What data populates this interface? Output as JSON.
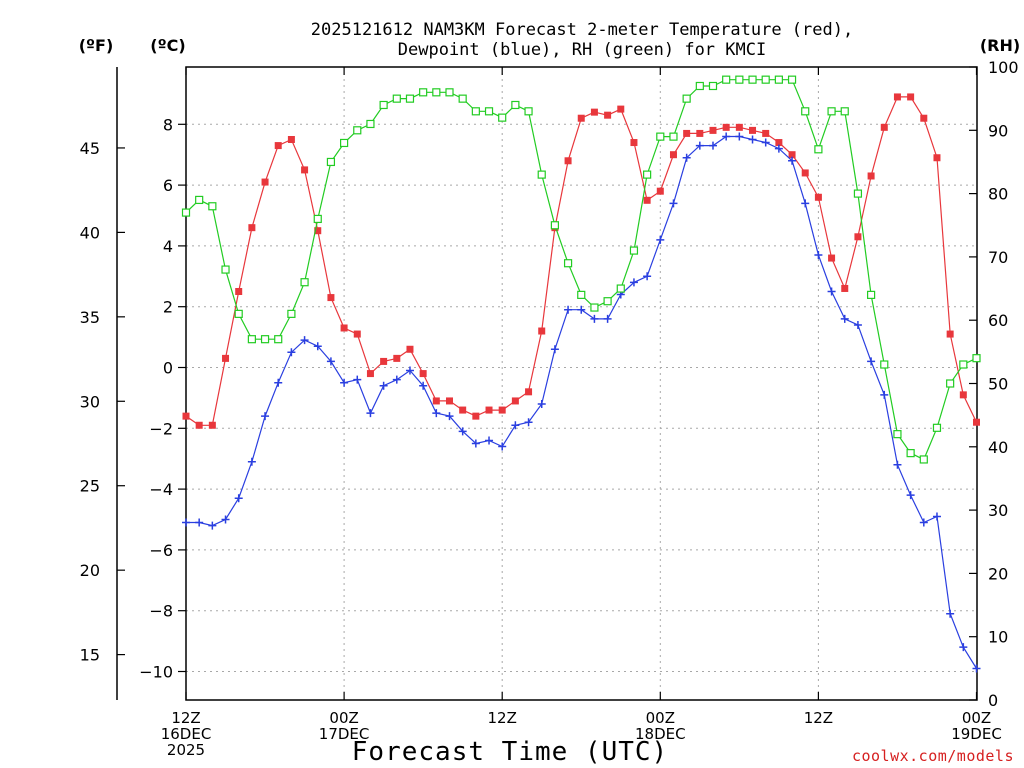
{
  "chart_data": {
    "type": "line",
    "title": "2025121612 NAM3KM Forecast 2-meter Temperature (red),",
    "title_line2": "Dewpoint (blue), RH (green) for KMCI",
    "xlabel": "Forecast Time (UTC)",
    "credit": "coolwx.com/models",
    "units": {
      "fahrenheit": "(ºF)",
      "celsius": "(ºC)",
      "rh": "(RH)"
    },
    "x_range_hours": [
      0,
      36
    ],
    "x_ticks": [
      {
        "hour": 0,
        "lines": [
          "12Z",
          "16DEC",
          "2025"
        ]
      },
      {
        "hour": 6,
        "lines": [
          "00Z",
          "17DEC"
        ]
      },
      {
        "hour": 12,
        "lines": [
          "12Z"
        ]
      },
      {
        "hour": 18,
        "lines": [
          "00Z",
          "18DEC"
        ]
      },
      {
        "hour": 24,
        "lines": [
          "12Z"
        ]
      },
      {
        "hour": 30,
        "lines": [
          "00Z",
          "19DEC"
        ]
      }
    ],
    "celsius_axis": {
      "ylim": [
        -11,
        9.5
      ],
      "ticks": [
        -10,
        -8,
        -6,
        -4,
        -2,
        0,
        2,
        4,
        6,
        8
      ]
    },
    "fahrenheit_axis": {
      "ticks": [
        15,
        20,
        25,
        30,
        35,
        40,
        45
      ]
    },
    "rh_axis": {
      "ylim": [
        0,
        100
      ],
      "ticks": [
        0,
        10,
        20,
        30,
        40,
        50,
        60,
        70,
        80,
        90,
        100
      ]
    },
    "hours": [
      0,
      0.5,
      1,
      1.5,
      2,
      2.5,
      3,
      3.5,
      4,
      4.5,
      5,
      5.5,
      6,
      6.5,
      7,
      7.5,
      8,
      8.5,
      9,
      9.5,
      10,
      10.5,
      11,
      11.5,
      12,
      12.5,
      13,
      13.5,
      14,
      14.5,
      15,
      15.5,
      16,
      16.5,
      17,
      17.5,
      18,
      18.5,
      19,
      19.5,
      20,
      20.5,
      21,
      21.5,
      22,
      22.5,
      23,
      23.5,
      24,
      24.5,
      25,
      25.5,
      26,
      26.5,
      27,
      27.5,
      28,
      28.5,
      29,
      29.5,
      30
    ],
    "series": [
      {
        "name": "Temperature",
        "color": "#e8373c",
        "marker": "filled-square",
        "axis": "celsius",
        "values": [
          -1.6,
          -1.9,
          -1.9,
          0.3,
          2.5,
          4.6,
          6.1,
          7.3,
          7.5,
          6.5,
          4.5,
          2.3,
          1.3,
          1.1,
          -0.2,
          0.2,
          0.3,
          0.6,
          -0.2,
          -1.1,
          -1.1,
          -1.4,
          -1.6,
          -1.4,
          -1.4,
          -1.1,
          -0.8,
          1.2,
          4.6,
          6.8,
          8.2,
          8.4,
          8.3,
          8.5,
          7.4,
          5.5,
          5.8,
          7.0,
          7.7,
          7.7,
          7.8,
          7.9,
          7.9,
          7.8,
          7.7,
          7.4,
          7.0,
          6.4,
          5.6,
          3.6,
          2.6,
          4.3,
          6.3,
          7.9,
          8.9,
          8.9,
          8.2,
          6.9,
          1.1,
          -0.9,
          -1.8
        ]
      },
      {
        "name": "Dewpoint",
        "color": "#2a3fe0",
        "marker": "plus",
        "axis": "celsius",
        "values": [
          -5.1,
          -5.1,
          -5.2,
          -5.0,
          -4.3,
          -3.1,
          -1.6,
          -0.5,
          0.5,
          0.9,
          0.7,
          0.2,
          -0.5,
          -0.4,
          -1.5,
          -0.6,
          -0.4,
          -0.1,
          -0.6,
          -1.5,
          -1.6,
          -2.1,
          -2.5,
          -2.4,
          -2.6,
          -1.9,
          -1.8,
          -1.2,
          0.6,
          1.9,
          1.9,
          1.6,
          1.6,
          2.4,
          2.8,
          3.0,
          4.2,
          5.4,
          6.9,
          7.3,
          7.3,
          7.6,
          7.6,
          7.5,
          7.4,
          7.2,
          6.8,
          5.4,
          3.7,
          2.5,
          1.6,
          1.4,
          0.2,
          -0.9,
          -3.2,
          -4.2,
          -5.1,
          -4.9,
          -8.1,
          -9.2,
          -9.9
        ]
      },
      {
        "name": "RH",
        "color": "#22cc22",
        "marker": "open-square",
        "axis": "rh",
        "values": [
          77,
          79,
          78,
          68,
          61,
          57,
          57,
          57,
          61,
          66,
          76,
          85,
          88,
          90,
          91,
          94,
          95,
          95,
          96,
          96,
          96,
          95,
          93,
          93,
          92,
          94,
          93,
          83,
          75,
          69,
          64,
          62,
          63,
          65,
          71,
          83,
          89,
          89,
          95,
          97,
          97,
          98,
          98,
          98,
          98,
          98,
          98,
          93,
          87,
          93,
          93,
          80,
          64,
          53,
          42,
          39,
          38,
          43,
          50,
          53,
          54
        ]
      }
    ]
  }
}
